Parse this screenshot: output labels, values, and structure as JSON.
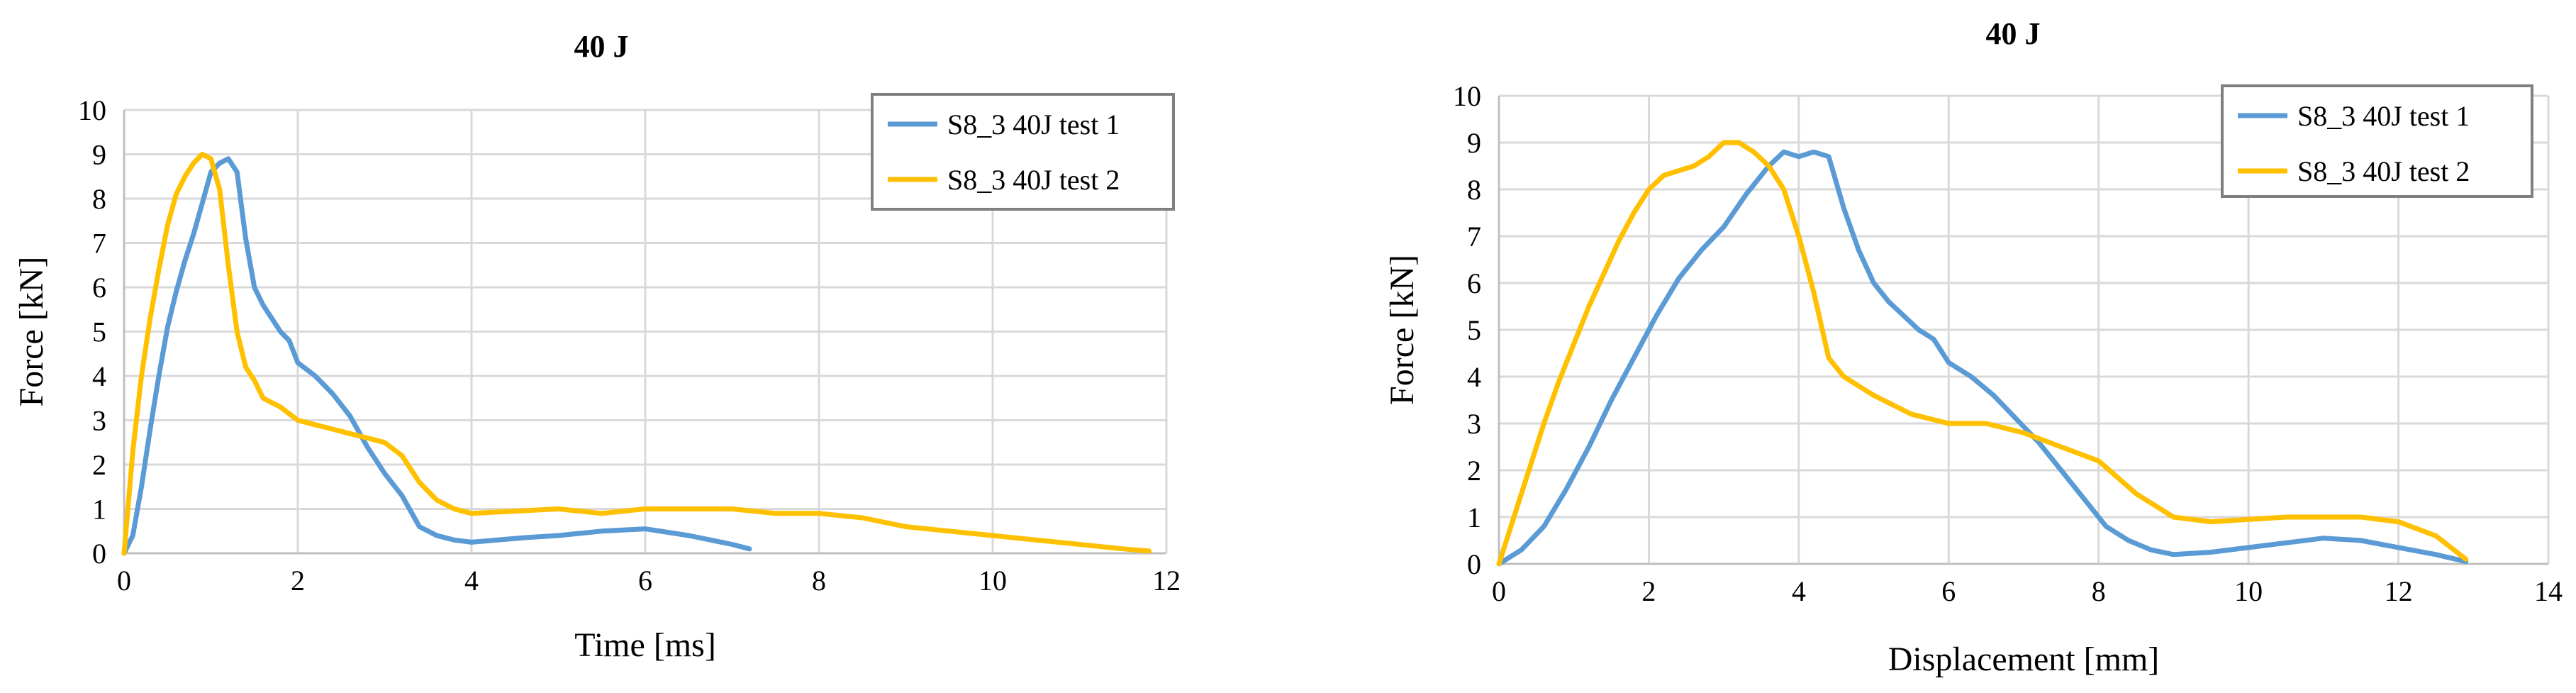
{
  "chart_data": [
    {
      "type": "line",
      "title": "40 J",
      "xlabel": "Time [ms]",
      "ylabel": "Force [kN]",
      "xlim": [
        0,
        12
      ],
      "ylim": [
        0,
        10
      ],
      "xticks": [
        0,
        2,
        4,
        6,
        8,
        10,
        12
      ],
      "yticks": [
        0,
        1,
        2,
        3,
        4,
        5,
        6,
        7,
        8,
        9,
        10
      ],
      "grid": true,
      "legend_position": "top-right",
      "series": [
        {
          "name": "S8_3 40J test 1",
          "color": "#5B9BD5",
          "x": [
            0,
            0.1,
            0.2,
            0.3,
            0.4,
            0.5,
            0.6,
            0.7,
            0.8,
            0.9,
            1.0,
            1.1,
            1.2,
            1.3,
            1.4,
            1.5,
            1.6,
            1.7,
            1.8,
            1.9,
            2.0,
            2.2,
            2.4,
            2.6,
            2.8,
            3.0,
            3.2,
            3.4,
            3.6,
            3.8,
            4.0,
            4.3,
            4.6,
            5.0,
            5.5,
            6.0,
            6.5,
            7.0,
            7.2
          ],
          "y": [
            0,
            0.4,
            1.5,
            2.8,
            4.0,
            5.1,
            5.9,
            6.6,
            7.2,
            7.9,
            8.6,
            8.8,
            8.9,
            8.6,
            7.1,
            6.0,
            5.6,
            5.3,
            5.0,
            4.8,
            4.3,
            4.0,
            3.6,
            3.1,
            2.4,
            1.8,
            1.3,
            0.6,
            0.4,
            0.3,
            0.25,
            0.3,
            0.35,
            0.4,
            0.5,
            0.55,
            0.4,
            0.2,
            0.1
          ]
        },
        {
          "name": "S8_3 40J test 2",
          "color": "#FFC000",
          "x": [
            0,
            0.1,
            0.2,
            0.3,
            0.4,
            0.5,
            0.6,
            0.7,
            0.8,
            0.9,
            1.0,
            1.1,
            1.2,
            1.3,
            1.4,
            1.5,
            1.6,
            1.8,
            2.0,
            2.2,
            2.4,
            2.6,
            2.8,
            3.0,
            3.2,
            3.4,
            3.6,
            3.8,
            4.0,
            4.5,
            5.0,
            5.5,
            6.0,
            6.5,
            7.0,
            7.5,
            8.0,
            8.5,
            9.0,
            9.5,
            10.0,
            10.5,
            11.0,
            11.5,
            11.8
          ],
          "y": [
            0,
            2.3,
            4.0,
            5.3,
            6.4,
            7.4,
            8.1,
            8.5,
            8.8,
            9.0,
            8.9,
            8.2,
            6.5,
            5.0,
            4.2,
            3.9,
            3.5,
            3.3,
            3.0,
            2.9,
            2.8,
            2.7,
            2.6,
            2.5,
            2.2,
            1.6,
            1.2,
            1.0,
            0.9,
            0.95,
            1.0,
            0.9,
            1.0,
            1.0,
            1.0,
            0.9,
            0.9,
            0.8,
            0.6,
            0.5,
            0.4,
            0.3,
            0.2,
            0.1,
            0.05
          ]
        }
      ]
    },
    {
      "type": "line",
      "title": "40 J",
      "xlabel": "Displacement [mm]",
      "ylabel": "Force [kN]",
      "xlim": [
        0,
        14
      ],
      "ylim": [
        0,
        10
      ],
      "xticks": [
        0,
        2,
        4,
        6,
        8,
        10,
        12,
        14
      ],
      "yticks": [
        0,
        1,
        2,
        3,
        4,
        5,
        6,
        7,
        8,
        9,
        10
      ],
      "grid": true,
      "legend_position": "top-right",
      "series": [
        {
          "name": "S8_3 40J test 1",
          "color": "#5B9BD5",
          "x": [
            0,
            0.3,
            0.6,
            0.9,
            1.2,
            1.5,
            1.8,
            2.1,
            2.4,
            2.7,
            3.0,
            3.3,
            3.6,
            3.8,
            4.0,
            4.2,
            4.4,
            4.6,
            4.8,
            5.0,
            5.2,
            5.4,
            5.6,
            5.8,
            6.0,
            6.3,
            6.6,
            6.9,
            7.2,
            7.5,
            7.8,
            8.1,
            8.4,
            8.7,
            9.0,
            9.5,
            10.0,
            10.5,
            11.0,
            11.5,
            12.0,
            12.5,
            12.9
          ],
          "y": [
            0,
            0.3,
            0.8,
            1.6,
            2.5,
            3.5,
            4.4,
            5.3,
            6.1,
            6.7,
            7.2,
            7.9,
            8.5,
            8.8,
            8.7,
            8.8,
            8.7,
            7.6,
            6.7,
            6.0,
            5.6,
            5.3,
            5.0,
            4.8,
            4.3,
            4.0,
            3.6,
            3.1,
            2.6,
            2.0,
            1.4,
            0.8,
            0.5,
            0.3,
            0.2,
            0.25,
            0.35,
            0.45,
            0.55,
            0.5,
            0.35,
            0.2,
            0.05
          ]
        },
        {
          "name": "S8_3 40J test 2",
          "color": "#FFC000",
          "x": [
            0,
            0.2,
            0.4,
            0.6,
            0.8,
            1.0,
            1.2,
            1.4,
            1.6,
            1.8,
            2.0,
            2.2,
            2.4,
            2.6,
            2.8,
            3.0,
            3.2,
            3.4,
            3.6,
            3.8,
            4.0,
            4.2,
            4.4,
            4.6,
            4.8,
            5.0,
            5.5,
            6.0,
            6.5,
            7.0,
            7.5,
            8.0,
            8.5,
            9.0,
            9.5,
            10.0,
            10.5,
            11.0,
            11.5,
            12.0,
            12.5,
            12.9
          ],
          "y": [
            0,
            1.0,
            2.0,
            3.0,
            3.9,
            4.7,
            5.5,
            6.2,
            6.9,
            7.5,
            8.0,
            8.3,
            8.4,
            8.5,
            8.7,
            9.0,
            9.0,
            8.8,
            8.5,
            8.0,
            7.0,
            5.8,
            4.4,
            4.0,
            3.8,
            3.6,
            3.2,
            3.0,
            3.0,
            2.8,
            2.5,
            2.2,
            1.5,
            1.0,
            0.9,
            0.95,
            1.0,
            1.0,
            1.0,
            0.9,
            0.6,
            0.1
          ]
        }
      ]
    }
  ]
}
